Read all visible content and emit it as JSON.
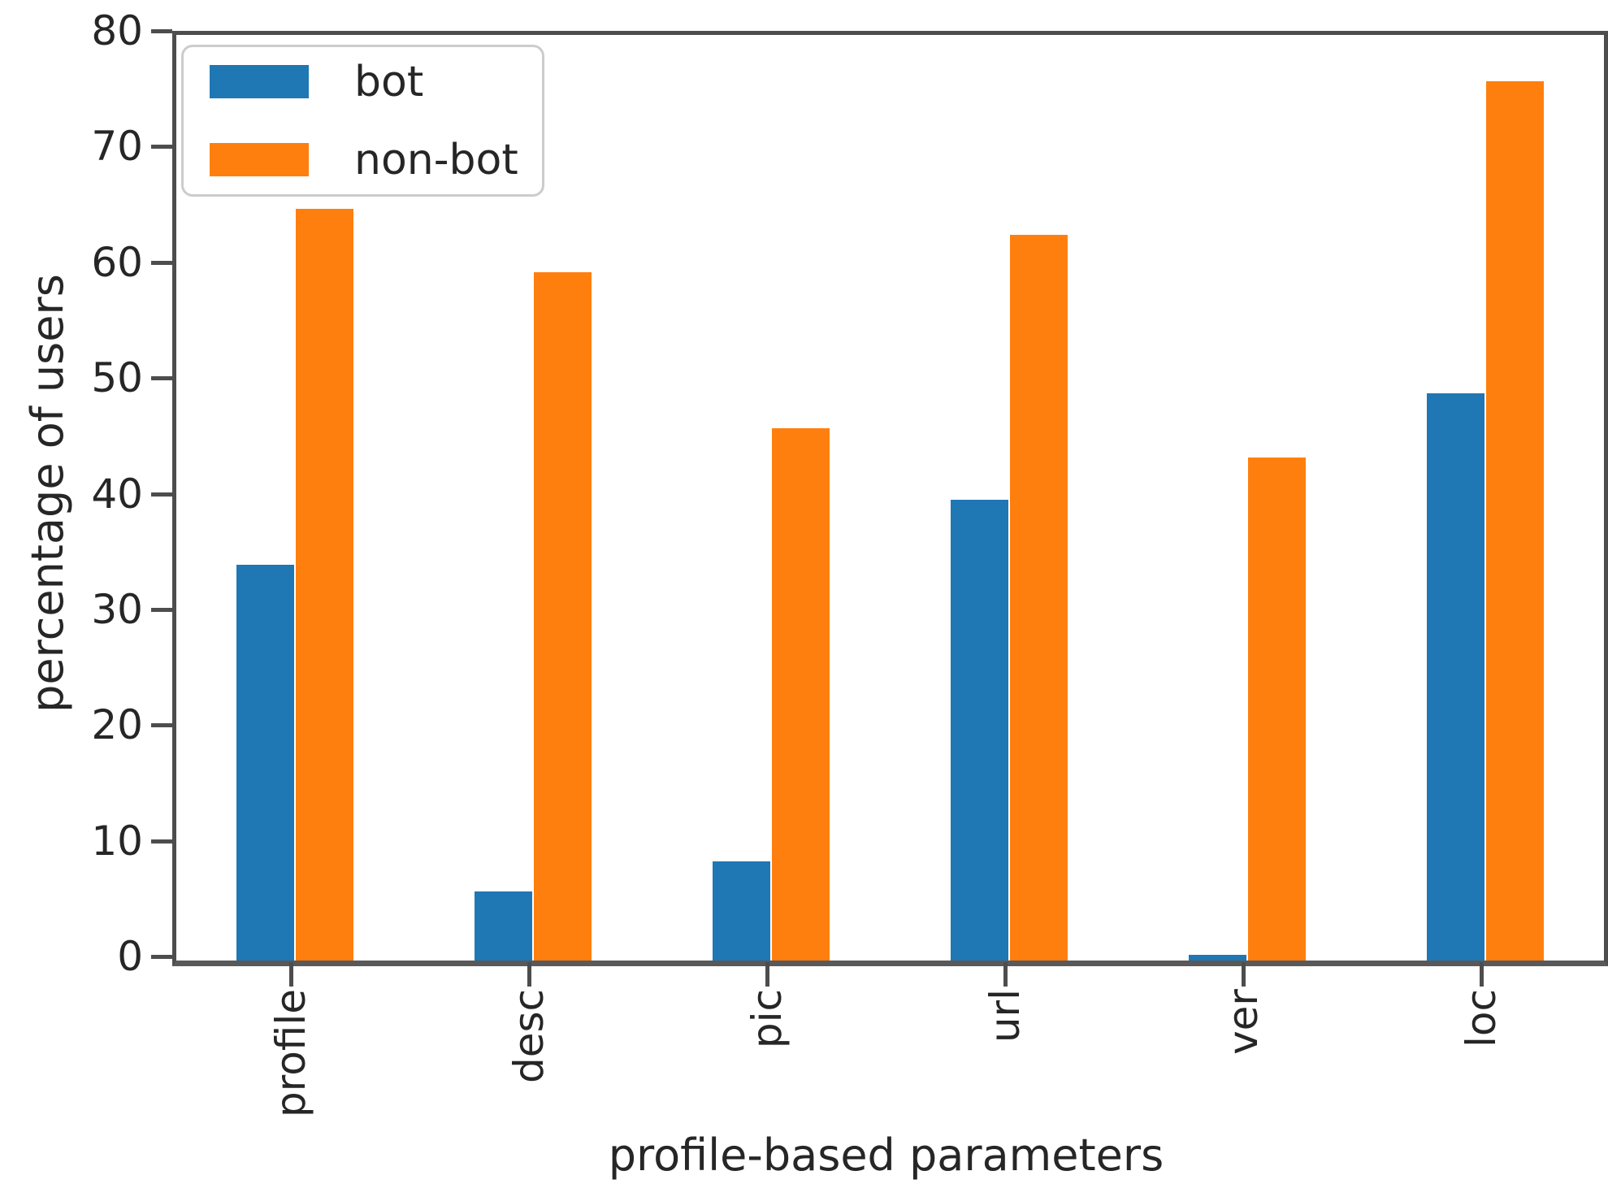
{
  "chart_data": {
    "type": "bar",
    "title": "",
    "categories": [
      "profile",
      "desc",
      "pic",
      "url",
      "ver",
      "loc"
    ],
    "series": [
      {
        "name": "bot",
        "color": "#1f77b4",
        "values": [
          34.2,
          6.0,
          8.6,
          39.8,
          0.5,
          49.0
        ]
      },
      {
        "name": "non-bot",
        "color": "#ff7f0e",
        "values": [
          65.0,
          59.5,
          46.0,
          62.7,
          43.5,
          76.0
        ]
      }
    ],
    "xlabel": "profile-based parameters",
    "ylabel": "percentage of users",
    "ylim": [
      0,
      80
    ],
    "yticks": [
      0,
      10,
      20,
      30,
      40,
      50,
      60,
      70,
      80
    ],
    "grid": false,
    "legend_position": "upper left",
    "axis_color": "#4d4d4d",
    "text_color": "#262626"
  }
}
